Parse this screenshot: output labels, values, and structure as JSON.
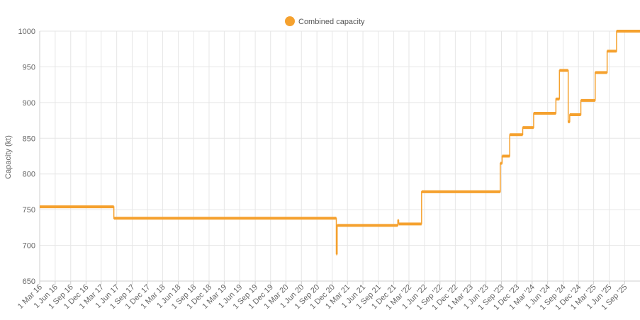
{
  "chart_data": {
    "type": "line",
    "step": true,
    "series": [
      {
        "name": "Combined capacity",
        "color": "#f5a12e",
        "points": [
          [
            "2016-03-01",
            754
          ],
          [
            "2017-05-15",
            754
          ],
          [
            "2017-05-15",
            738
          ],
          [
            "2020-12-25",
            738
          ],
          [
            "2020-12-25",
            688
          ],
          [
            "2020-12-30",
            688
          ],
          [
            "2020-12-30",
            728
          ],
          [
            "2021-12-25",
            728
          ],
          [
            "2021-12-25",
            735
          ],
          [
            "2021-12-30",
            735
          ],
          [
            "2021-12-30",
            730
          ],
          [
            "2022-05-15",
            730
          ],
          [
            "2022-05-15",
            775
          ],
          [
            "2023-08-25",
            775
          ],
          [
            "2023-08-25",
            815
          ],
          [
            "2023-09-05",
            815
          ],
          [
            "2023-09-05",
            825
          ],
          [
            "2023-10-20",
            825
          ],
          [
            "2023-10-20",
            855
          ],
          [
            "2024-01-05",
            855
          ],
          [
            "2024-01-05",
            865
          ],
          [
            "2024-03-10",
            865
          ],
          [
            "2024-03-10",
            885
          ],
          [
            "2024-07-20",
            885
          ],
          [
            "2024-07-20",
            905
          ],
          [
            "2024-08-10",
            905
          ],
          [
            "2024-08-10",
            945
          ],
          [
            "2024-10-01",
            945
          ],
          [
            "2024-10-01",
            873
          ],
          [
            "2024-10-10",
            873
          ],
          [
            "2024-10-10",
            883
          ],
          [
            "2024-12-15",
            883
          ],
          [
            "2024-12-15",
            903
          ],
          [
            "2025-03-10",
            903
          ],
          [
            "2025-03-10",
            942
          ],
          [
            "2025-05-20",
            942
          ],
          [
            "2025-05-20",
            972
          ],
          [
            "2025-07-15",
            972
          ],
          [
            "2025-07-15",
            1000
          ],
          [
            "2025-12-01",
            1000
          ]
        ]
      }
    ],
    "xlabel": "",
    "ylabel": "Capacity (kt)",
    "x_range": [
      "2016-03-01",
      "2025-12-01"
    ],
    "ylim": [
      650,
      1000
    ],
    "y_ticks": [
      650,
      700,
      750,
      800,
      850,
      900,
      950,
      1000
    ],
    "x_ticks": [
      "2016-03-01",
      "2016-06-01",
      "2016-09-01",
      "2016-12-01",
      "2017-03-01",
      "2017-06-01",
      "2017-09-01",
      "2017-12-01",
      "2018-03-01",
      "2018-06-01",
      "2018-09-01",
      "2018-12-01",
      "2019-03-01",
      "2019-06-01",
      "2019-09-01",
      "2019-12-01",
      "2020-03-01",
      "2020-06-01",
      "2020-09-01",
      "2020-12-01",
      "2021-03-01",
      "2021-06-01",
      "2021-09-01",
      "2021-12-01",
      "2022-03-01",
      "2022-06-01",
      "2022-09-01",
      "2022-12-01",
      "2023-03-01",
      "2023-06-01",
      "2023-09-01",
      "2023-12-01",
      "2024-03-01",
      "2024-06-01",
      "2024-09-01",
      "2024-12-01",
      "2025-03-01",
      "2025-06-01",
      "2025-09-01"
    ],
    "x_tick_labels": [
      "1 Mar 16",
      "1 Jun 16",
      "1 Sep 16",
      "1 Dec 16",
      "1 Mar 17",
      "1 Jun 17",
      "1 Sep 17",
      "1 Dec 17",
      "1 Mar 18",
      "1 Jun 18",
      "1 Sep 18",
      "1 Dec 18",
      "1 Mar 19",
      "1 Jun 19",
      "1 Sep 19",
      "1 Dec 19",
      "1 Mar 20",
      "1 Jun 20",
      "1 Sep 20",
      "1 Dec 20",
      "1 Mar 21",
      "1 Jun 21",
      "1 Sep 21",
      "1 Dec 21",
      "1 Mar '22",
      "1 Jun '22",
      "1 Sep '22",
      "1 Dec '22",
      "1 Mar '23",
      "1 Jun '23",
      "1 Sep '23",
      "1 Dec '23",
      "1 Mar '24",
      "1 Jun '24",
      "1 Sep '24",
      "1 Dec '24",
      "1 Mar '25",
      "1 Jun '25",
      "1 Sep '25"
    ],
    "grid": true,
    "legend": "top-center"
  }
}
